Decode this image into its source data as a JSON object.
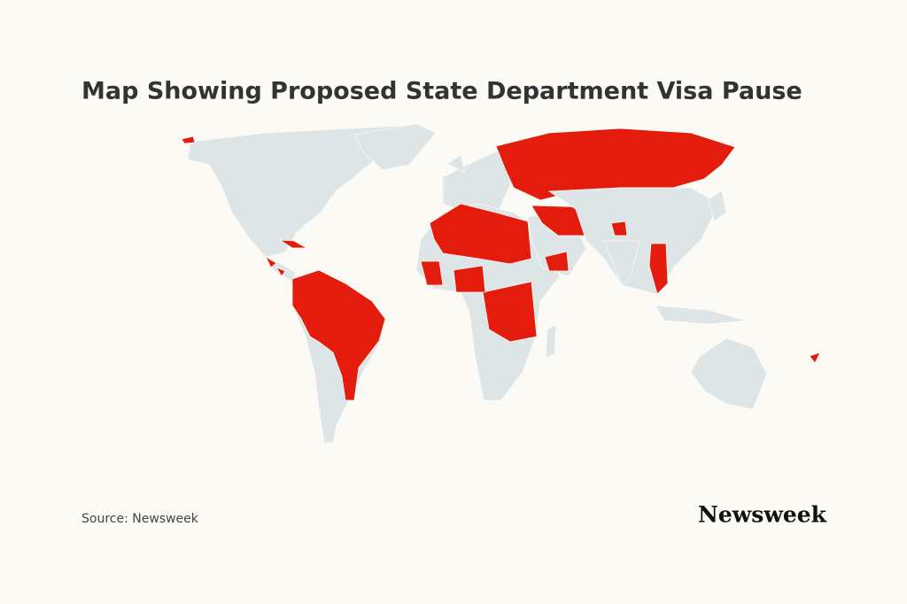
{
  "header": {
    "title": "Map Showing Proposed State Department Visa Pause"
  },
  "footer": {
    "source": "Source: Newsweek",
    "logo": "Newsweek"
  }
}
